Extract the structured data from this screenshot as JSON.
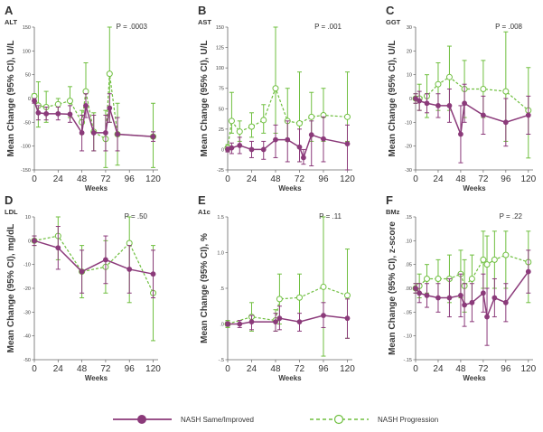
{
  "colors": {
    "improved": "#8b3a7a",
    "progression": "#6fbf3f",
    "axis": "#666666"
  },
  "legend": {
    "improved_label": "NASH Same/Improved",
    "progression_label": "NASH Progression"
  },
  "chart_data": [
    {
      "id": "A",
      "panel_label": "ALT",
      "type": "line",
      "title": "A",
      "xlabel": "Weeks",
      "ylabel": "Mean Change (95% CI), U/L",
      "pvalue": "P = .0003",
      "xlim": [
        0,
        125
      ],
      "xticks": [
        0,
        24,
        48,
        72,
        96,
        120
      ],
      "ylim": [
        -150,
        150
      ],
      "yticks": [
        -150,
        -100,
        -50,
        0,
        50,
        100,
        150
      ],
      "series": [
        {
          "name": "NASH Same/Improved",
          "x": [
            0,
            4,
            12,
            24,
            36,
            48,
            52,
            60,
            72,
            76,
            84,
            120
          ],
          "y": [
            -5,
            -30,
            -32,
            -32,
            -33,
            -72,
            -15,
            -72,
            -72,
            -20,
            -75,
            -80
          ],
          "lo": [
            -10,
            -45,
            -45,
            -45,
            -50,
            -110,
            -40,
            -110,
            -110,
            -50,
            -110,
            -90
          ],
          "hi": [
            0,
            -15,
            -18,
            -18,
            -15,
            -35,
            10,
            -35,
            -35,
            10,
            -40,
            -70
          ]
        },
        {
          "name": "NASH Progression",
          "x": [
            0,
            4,
            12,
            24,
            36,
            48,
            52,
            60,
            72,
            76,
            84,
            120
          ],
          "y": [
            5,
            -15,
            -18,
            -12,
            -5,
            -50,
            15,
            -70,
            -85,
            52,
            -75,
            -80
          ],
          "lo": [
            0,
            -60,
            -50,
            -30,
            -40,
            -75,
            -20,
            -110,
            -145,
            -50,
            -140,
            -145
          ],
          "hi": [
            10,
            35,
            15,
            0,
            25,
            -25,
            75,
            -30,
            -25,
            150,
            -10,
            -10
          ]
        }
      ]
    },
    {
      "id": "B",
      "panel_label": "AST",
      "type": "line",
      "title": "B",
      "xlabel": "Weeks",
      "ylabel": "Mean Change (95% CI), U/L",
      "pvalue": "P = .001",
      "xlim": [
        0,
        125
      ],
      "xticks": [
        0,
        24,
        48,
        72,
        96,
        120
      ],
      "ylim": [
        -25,
        150
      ],
      "yticks": [
        -25,
        0,
        25,
        50,
        75,
        100,
        125,
        150
      ],
      "series": [
        {
          "name": "NASH Same/Improved",
          "x": [
            0,
            4,
            12,
            24,
            36,
            48,
            60,
            72,
            76,
            84,
            96,
            120
          ],
          "y": [
            0,
            2,
            5,
            0,
            0,
            12,
            12,
            3,
            -10,
            18,
            13,
            7
          ],
          "lo": [
            -3,
            -5,
            -5,
            -10,
            -12,
            -10,
            -15,
            -15,
            -18,
            -20,
            -15,
            -25
          ],
          "hi": [
            3,
            8,
            15,
            10,
            10,
            30,
            35,
            25,
            0,
            35,
            40,
            30
          ]
        },
        {
          "name": "NASH Progression",
          "x": [
            0,
            4,
            12,
            24,
            36,
            48,
            60,
            72,
            84,
            96,
            120
          ],
          "y": [
            2,
            35,
            22,
            28,
            36,
            75,
            35,
            32,
            40,
            42,
            40
          ],
          "lo": [
            -2,
            20,
            10,
            15,
            20,
            20,
            10,
            -15,
            10,
            10,
            10
          ],
          "hi": [
            6,
            70,
            35,
            45,
            55,
            150,
            75,
            95,
            70,
            75,
            95
          ]
        }
      ]
    },
    {
      "id": "C",
      "panel_label": "GGT",
      "type": "line",
      "title": "C",
      "xlabel": "Weeks",
      "ylabel": "Mean Change (95% CI), U/L",
      "pvalue": "P = .008",
      "xlim": [
        0,
        125
      ],
      "xticks": [
        0,
        24,
        48,
        72,
        96,
        120
      ],
      "ylim": [
        -30,
        30
      ],
      "yticks": [
        -30,
        -20,
        -10,
        0,
        10,
        20,
        30
      ],
      "series": [
        {
          "name": "NASH Same/Improved",
          "x": [
            0,
            4,
            12,
            24,
            36,
            48,
            52,
            72,
            96,
            120
          ],
          "y": [
            0,
            -1,
            -2,
            -3,
            -3,
            -15,
            -2,
            -7,
            -10,
            -7
          ],
          "lo": [
            -2,
            -5,
            -6,
            -8,
            -10,
            -27,
            -10,
            -15,
            -20,
            -15
          ],
          "hi": [
            2,
            3,
            2,
            2,
            4,
            -3,
            6,
            1,
            0,
            1
          ]
        },
        {
          "name": "NASH Progression",
          "x": [
            0,
            4,
            12,
            24,
            36,
            52,
            72,
            96,
            120
          ],
          "y": [
            0,
            0,
            1,
            6,
            9,
            4,
            4,
            3,
            -5
          ],
          "lo": [
            -2,
            -5,
            -8,
            -5,
            -5,
            -8,
            -8,
            -18,
            -25
          ],
          "hi": [
            2,
            6,
            10,
            15,
            22,
            16,
            16,
            28,
            13
          ]
        }
      ]
    },
    {
      "id": "D",
      "panel_label": "LDL",
      "type": "line",
      "title": "D",
      "xlabel": "Weeks",
      "ylabel": "Mean Change (95% CI), mg/dL",
      "pvalue": "P = .50",
      "xlim": [
        0,
        125
      ],
      "xticks": [
        0,
        24,
        48,
        72,
        96,
        120
      ],
      "ylim": [
        -50,
        10
      ],
      "yticks": [
        -50,
        -40,
        -30,
        -20,
        -10,
        0,
        10
      ],
      "series": [
        {
          "name": "NASH Same/Improved",
          "x": [
            0,
            24,
            48,
            72,
            96,
            120
          ],
          "y": [
            0,
            -3,
            -13,
            -8,
            -12,
            -14
          ],
          "lo": [
            -2,
            -12,
            -22,
            -18,
            -22,
            -24
          ],
          "hi": [
            2,
            6,
            -4,
            2,
            -2,
            -4
          ]
        },
        {
          "name": "NASH Progression",
          "x": [
            0,
            24,
            48,
            72,
            96,
            120
          ],
          "y": [
            0,
            2,
            -13,
            -11,
            -1,
            -22
          ],
          "lo": [
            -2,
            -8,
            -24,
            -22,
            -26,
            -42
          ],
          "hi": [
            2,
            10,
            -2,
            0,
            24,
            -2
          ]
        }
      ]
    },
    {
      "id": "E",
      "panel_label": "A1c",
      "type": "line",
      "title": "E",
      "xlabel": "Weeks",
      "ylabel": "Mean Change (95% CI), %",
      "pvalue": "P = .11",
      "xlim": [
        0,
        125
      ],
      "xticks": [
        0,
        24,
        48,
        72,
        96,
        120
      ],
      "ylim": [
        -0.5,
        1.5
      ],
      "yticks": [
        -0.5,
        0,
        0.5,
        1,
        1.5
      ],
      "series": [
        {
          "name": "NASH Same/Improved",
          "x": [
            0,
            12,
            24,
            48,
            52,
            72,
            96,
            120
          ],
          "y": [
            0,
            0,
            0.03,
            0.03,
            0.08,
            0.03,
            0.12,
            0.08
          ],
          "lo": [
            -0.03,
            -0.05,
            -0.08,
            -0.1,
            -0.08,
            -0.1,
            -0.05,
            -0.2
          ],
          "hi": [
            0.03,
            0.05,
            0.12,
            0.15,
            0.25,
            0.15,
            0.3,
            0.35
          ]
        },
        {
          "name": "NASH Progression",
          "x": [
            0,
            24,
            48,
            52,
            72,
            96,
            120
          ],
          "y": [
            0,
            0.1,
            0.05,
            0.35,
            0.37,
            0.52,
            0.4
          ],
          "lo": [
            -0.05,
            -0.1,
            -0.1,
            0,
            0.03,
            -0.45,
            -0.2
          ],
          "hi": [
            0.05,
            0.3,
            0.2,
            0.7,
            0.7,
            1.5,
            1.05
          ]
        }
      ]
    },
    {
      "id": "F",
      "panel_label": "BMz",
      "type": "line",
      "title": "F",
      "xlabel": "Weeks",
      "ylabel": "Mean Change (95% CI), z-score",
      "pvalue": "P = .22",
      "xlim": [
        0,
        125
      ],
      "xticks": [
        0,
        24,
        48,
        72,
        96,
        120
      ],
      "ylim": [
        -0.15,
        0.15
      ],
      "yticks": [
        -0.15,
        -0.1,
        -0.05,
        0.0,
        0.05,
        0.1,
        0.15
      ],
      "series": [
        {
          "name": "NASH Same/Improved",
          "x": [
            0,
            4,
            12,
            24,
            36,
            48,
            52,
            60,
            72,
            76,
            84,
            96,
            120
          ],
          "y": [
            0,
            -0.01,
            -0.015,
            -0.02,
            -0.02,
            -0.015,
            -0.035,
            -0.03,
            -0.01,
            -0.06,
            -0.02,
            -0.03,
            0.035
          ],
          "lo": [
            -0.01,
            -0.03,
            -0.04,
            -0.05,
            -0.06,
            -0.06,
            -0.08,
            -0.07,
            -0.05,
            -0.12,
            -0.06,
            -0.07,
            -0.01
          ],
          "hi": [
            0.01,
            0.01,
            0.01,
            0.01,
            0.02,
            0.03,
            0.01,
            0.01,
            0.03,
            0.0,
            0.02,
            0.01,
            0.08
          ]
        },
        {
          "name": "NASH Progression",
          "x": [
            0,
            4,
            12,
            24,
            36,
            48,
            52,
            60,
            72,
            76,
            84,
            96,
            120
          ],
          "y": [
            0,
            0.005,
            0.02,
            0.02,
            0.02,
            0.03,
            0.005,
            0.02,
            0.06,
            0.05,
            0.06,
            0.07,
            0.055
          ],
          "lo": [
            -0.01,
            -0.02,
            -0.01,
            -0.02,
            -0.03,
            -0.02,
            -0.05,
            -0.03,
            0.0,
            0.0,
            0.0,
            0.0,
            -0.03
          ],
          "hi": [
            0.01,
            0.03,
            0.05,
            0.06,
            0.07,
            0.08,
            0.06,
            0.07,
            0.12,
            0.11,
            0.12,
            0.12,
            0.12
          ]
        }
      ]
    }
  ]
}
